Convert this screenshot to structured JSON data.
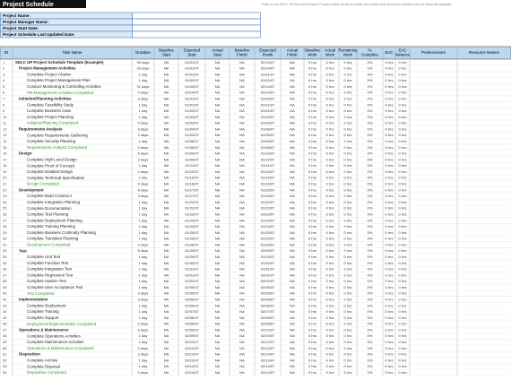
{
  "header": {
    "title": "Project Schedule",
    "note": "Refer to the SDLC UP Microsoft Project Phases Guide for the template information that should be updated prior to using the template"
  },
  "project_info": {
    "labels": [
      "Project Name:",
      "Project Manager Name:",
      "Project Start Date:",
      "Project Schedule Last Updated Date:"
    ]
  },
  "table": {
    "columns": [
      "ID",
      "Task Name",
      "Duration",
      "Baseline Start",
      "Expected Start",
      "Actual Start",
      "Baseline Finish",
      "Expected Finish",
      "Actual Finish",
      "Baseline Work",
      "Actual Work",
      "Remaining Work",
      "% Complete",
      "EAC",
      "EAC Variance",
      "Predecessors",
      "Resource Names"
    ],
    "project": [
      "1",
      "SDLC UP Project Schedule Template (Example)",
      "33 days",
      "NA",
      "01/01/07",
      "NA",
      "NA",
      "02/14/07",
      "NA",
      "0 hrs",
      "0 hrs",
      "0 hrs",
      "0%",
      "0 hrs",
      "0 hrs"
    ],
    "phases": [
      {
        "summary": [
          "2",
          "Project Management Activities",
          "33 days",
          "NA",
          "01/01/07",
          "NA",
          "NA",
          "02/14/07",
          "NA",
          "0 hrs",
          "0 hrs",
          "0 hrs",
          "0%",
          "0 hrs",
          "0 hrs"
        ],
        "tasks": [
          [
            "3",
            "Complete Project Charter",
            "1 day",
            "NA",
            "01/01/07",
            "NA",
            "NA",
            "01/01/07",
            "NA",
            "0 hrs",
            "0 hrs",
            "0 hrs",
            "0%",
            "0 hrs",
            "0 hrs"
          ],
          [
            "4",
            "Complete Project Management Plan",
            "1 day",
            "NA",
            "01/02/07",
            "NA",
            "NA",
            "01/02/07",
            "NA",
            "0 hrs",
            "0 hrs",
            "0 hrs",
            "0%",
            "0 hrs",
            "0 hrs"
          ],
          [
            "5",
            "Conduct Monitoring & Controlling Activities",
            "31 days",
            "NA",
            "01/03/07",
            "NA",
            "NA",
            "02/14/07",
            "NA",
            "0 hrs",
            "0 hrs",
            "0 hrs",
            "0%",
            "0 hrs",
            "0 hrs"
          ]
        ],
        "milestone": [
          "6",
          "PM Management Activities Completed",
          "0 days",
          "NA",
          "02/14/07",
          "NA",
          "NA",
          "02/14/07",
          "NA",
          "0 hrs",
          "0 hrs",
          "0 hrs",
          "0%",
          "0 hrs",
          "0 hrs"
        ]
      },
      {
        "summary": [
          "7",
          "Initiation/Planning Activities",
          "3 days",
          "NA",
          "01/01/07",
          "NA",
          "NA",
          "01/03/07",
          "NA",
          "0 hrs",
          "0 hrs",
          "0 hrs",
          "0%",
          "0 hrs",
          "0 hrs"
        ],
        "tasks": [
          [
            "8",
            "Complete Feasibility Study",
            "1 day",
            "NA",
            "01/01/07",
            "NA",
            "NA",
            "01/01/07",
            "NA",
            "0 hrs",
            "0 hrs",
            "0 hrs",
            "0%",
            "0 hrs",
            "0 hrs"
          ],
          [
            "9",
            "Complete Business Case",
            "1 day",
            "NA",
            "01/02/07",
            "NA",
            "NA",
            "01/02/07",
            "NA",
            "0 hrs",
            "0 hrs",
            "0 hrs",
            "0%",
            "0 hrs",
            "0 hrs"
          ],
          [
            "10",
            "Complete Project Planning",
            "1 day",
            "NA",
            "01/03/07",
            "NA",
            "NA",
            "01/03/07",
            "NA",
            "0 hrs",
            "0 hrs",
            "0 hrs",
            "0%",
            "0 hrs",
            "0 hrs"
          ]
        ],
        "milestone": [
          "11",
          "Initiation/Planning Completed",
          "0 days",
          "NA",
          "01/03/07",
          "NA",
          "NA",
          "01/03/07",
          "NA",
          "0 hrs",
          "0 hrs",
          "0 hrs",
          "0%",
          "0 hrs",
          "0 hrs"
        ]
      },
      {
        "summary": [
          "12",
          "Requirements Analysis",
          "3 days",
          "NA",
          "01/04/07",
          "NA",
          "NA",
          "01/08/07",
          "NA",
          "0 hrs",
          "0 hrs",
          "0 hrs",
          "0%",
          "0 hrs",
          "0 hrs"
        ],
        "tasks": [
          [
            "13",
            "Complete Requirements Gathering",
            "2 days",
            "NA",
            "01/04/07",
            "NA",
            "NA",
            "01/05/07",
            "NA",
            "0 hrs",
            "0 hrs",
            "0 hrs",
            "0%",
            "0 hrs",
            "0 hrs"
          ],
          [
            "14",
            "Complete Security Planning",
            "1 day",
            "NA",
            "01/08/07",
            "NA",
            "NA",
            "01/08/07",
            "NA",
            "0 hrs",
            "0 hrs",
            "0 hrs",
            "0%",
            "0 hrs",
            "0 hrs"
          ]
        ],
        "milestone": [
          "15",
          "Requirements Analysis Completed",
          "0 days",
          "NA",
          "01/08/07",
          "NA",
          "NA",
          "01/08/07",
          "NA",
          "0 hrs",
          "0 hrs",
          "0 hrs",
          "0%",
          "0 hrs",
          "0 hrs"
        ]
      },
      {
        "summary": [
          "16",
          "Design",
          "6 days",
          "NA",
          "01/09/07",
          "NA",
          "NA",
          "01/16/07",
          "NA",
          "0 hrs",
          "0 hrs",
          "0 hrs",
          "0%",
          "0 hrs",
          "0 hrs"
        ],
        "tasks": [
          [
            "17",
            "Complete High Level Design",
            "2 days",
            "NA",
            "01/09/07",
            "NA",
            "NA",
            "01/10/07",
            "NA",
            "0 hrs",
            "0 hrs",
            "0 hrs",
            "0%",
            "0 hrs",
            "0 hrs"
          ],
          [
            "18",
            "Complete Proof of Concept",
            "1 day",
            "NA",
            "01/11/07",
            "NA",
            "NA",
            "01/11/07",
            "NA",
            "0 hrs",
            "0 hrs",
            "0 hrs",
            "0%",
            "0 hrs",
            "0 hrs"
          ],
          [
            "19",
            "Complete Detailed Design",
            "2 days",
            "NA",
            "01/12/07",
            "NA",
            "NA",
            "01/15/07",
            "NA",
            "0 hrs",
            "0 hrs",
            "0 hrs",
            "0%",
            "0 hrs",
            "0 hrs"
          ],
          [
            "20",
            "Complete Technical Specification",
            "1 day",
            "NA",
            "01/16/07",
            "NA",
            "NA",
            "01/16/07",
            "NA",
            "0 hrs",
            "0 hrs",
            "0 hrs",
            "0%",
            "0 hrs",
            "0 hrs"
          ]
        ],
        "milestone": [
          "21",
          "Design Completed",
          "0 days",
          "NA",
          "01/16/07",
          "NA",
          "NA",
          "01/16/07",
          "NA",
          "0 hrs",
          "0 hrs",
          "0 hrs",
          "0%",
          "0 hrs",
          "0 hrs"
        ]
      },
      {
        "summary": [
          "22",
          "Development",
          "8 days",
          "NA",
          "01/17/07",
          "NA",
          "NA",
          "01/26/07",
          "NA",
          "0 hrs",
          "0 hrs",
          "0 hrs",
          "0%",
          "0 hrs",
          "0 hrs"
        ],
        "tasks": [
          [
            "23",
            "Complete Build Construct",
            "3 days",
            "NA",
            "01/17/07",
            "NA",
            "NA",
            "01/19/07",
            "NA",
            "0 hrs",
            "0 hrs",
            "0 hrs",
            "0%",
            "0 hrs",
            "0 hrs"
          ],
          [
            "24",
            "Complete Integration Planning",
            "1 day",
            "NA",
            "01/22/07",
            "NA",
            "NA",
            "01/22/07",
            "NA",
            "0 hrs",
            "0 hrs",
            "0 hrs",
            "0%",
            "0 hrs",
            "0 hrs"
          ],
          [
            "25",
            "Complete Documentation",
            "1 day",
            "NA",
            "01/22/07",
            "NA",
            "NA",
            "01/22/07",
            "NA",
            "0 hrs",
            "0 hrs",
            "0 hrs",
            "0%",
            "0 hrs",
            "0 hrs"
          ],
          [
            "26",
            "Complete Test Planning",
            "1 day",
            "NA",
            "01/23/07",
            "NA",
            "NA",
            "01/23/07",
            "NA",
            "0 hrs",
            "0 hrs",
            "0 hrs",
            "0%",
            "0 hrs",
            "0 hrs"
          ],
          [
            "27",
            "Complete Deployment Planning",
            "1 day",
            "NA",
            "01/24/07",
            "NA",
            "NA",
            "01/24/07",
            "NA",
            "0 hrs",
            "0 hrs",
            "0 hrs",
            "0%",
            "0 hrs",
            "0 hrs"
          ],
          [
            "28",
            "Complete Training Planning",
            "1 day",
            "NA",
            "01/24/07",
            "NA",
            "NA",
            "01/24/07",
            "NA",
            "0 hrs",
            "0 hrs",
            "0 hrs",
            "0%",
            "0 hrs",
            "0 hrs"
          ],
          [
            "29",
            "Complete Business Continuity Planning",
            "1 day",
            "NA",
            "01/25/07",
            "NA",
            "NA",
            "01/25/07",
            "NA",
            "0 hrs",
            "0 hrs",
            "0 hrs",
            "0%",
            "0 hrs",
            "0 hrs"
          ],
          [
            "30",
            "Complete Transition Planning",
            "1 day",
            "NA",
            "01/26/07",
            "NA",
            "NA",
            "01/26/07",
            "NA",
            "0 hrs",
            "0 hrs",
            "0 hrs",
            "0%",
            "0 hrs",
            "0 hrs"
          ]
        ],
        "milestone": [
          "31",
          "Development Completed",
          "0 days",
          "NA",
          "01/26/07",
          "NA",
          "NA",
          "01/26/07",
          "NA",
          "0 hrs",
          "0 hrs",
          "0 hrs",
          "0%",
          "0 hrs",
          "0 hrs"
        ]
      },
      {
        "summary": [
          "33",
          "Test",
          "6 days",
          "NA",
          "01/29/07",
          "NA",
          "NA",
          "02/05/07",
          "NA",
          "0 hrs",
          "0 hrs",
          "0 hrs",
          "0%",
          "0 hrs",
          "0 hrs"
        ],
        "tasks": [
          [
            "34",
            "Complete Unit Test",
            "1 day",
            "NA",
            "01/29/07",
            "NA",
            "NA",
            "01/29/07",
            "NA",
            "0 hrs",
            "0 hrs",
            "0 hrs",
            "0%",
            "0 hrs",
            "0 hrs"
          ],
          [
            "35",
            "Complete Function Test",
            "1 day",
            "NA",
            "01/30/07",
            "NA",
            "NA",
            "01/30/07",
            "NA",
            "0 hrs",
            "0 hrs",
            "0 hrs",
            "0%",
            "0 hrs",
            "0 hrs"
          ],
          [
            "36",
            "Complete Integration Test",
            "1 day",
            "NA",
            "01/31/07",
            "NA",
            "NA",
            "01/31/07",
            "NA",
            "0 hrs",
            "0 hrs",
            "0 hrs",
            "0%",
            "0 hrs",
            "0 hrs"
          ],
          [
            "37",
            "Complete Regression Test",
            "1 day",
            "NA",
            "02/01/07",
            "NA",
            "NA",
            "02/01/07",
            "NA",
            "0 hrs",
            "0 hrs",
            "0 hrs",
            "0%",
            "0 hrs",
            "0 hrs"
          ],
          [
            "38",
            "Complete System Test",
            "1 day",
            "NA",
            "02/02/07",
            "NA",
            "NA",
            "02/02/07",
            "NA",
            "0 hrs",
            "0 hrs",
            "0 hrs",
            "0%",
            "0 hrs",
            "0 hrs"
          ],
          [
            "39",
            "Complete User Acceptance Test",
            "1 day",
            "NA",
            "02/05/07",
            "NA",
            "NA",
            "02/05/07",
            "NA",
            "0 hrs",
            "0 hrs",
            "0 hrs",
            "0%",
            "0 hrs",
            "0 hrs"
          ]
        ],
        "milestone": [
          "40",
          "Test Completed",
          "0 days",
          "NA",
          "02/05/07",
          "NA",
          "NA",
          "02/05/07",
          "NA",
          "0 hrs",
          "0 hrs",
          "0 hrs",
          "0%",
          "0 hrs",
          "0 hrs"
        ]
      },
      {
        "summary": [
          "42",
          "Implementation",
          "3 days",
          "NA",
          "02/06/07",
          "NA",
          "NA",
          "02/08/07",
          "NA",
          "0 hrs",
          "0 hrs",
          "0 hrs",
          "0%",
          "0 hrs",
          "0 hrs"
        ],
        "tasks": [
          [
            "43",
            "Complete Deployment",
            "1 day",
            "NA",
            "02/06/07",
            "NA",
            "NA",
            "02/06/07",
            "NA",
            "0 hrs",
            "0 hrs",
            "0 hrs",
            "0%",
            "0 hrs",
            "0 hrs"
          ],
          [
            "44",
            "Complete Training",
            "1 day",
            "NA",
            "02/07/07",
            "NA",
            "NA",
            "02/07/07",
            "NA",
            "0 hrs",
            "0 hrs",
            "0 hrs",
            "0%",
            "0 hrs",
            "0 hrs"
          ],
          [
            "45",
            "Complete Support",
            "1 day",
            "NA",
            "02/08/07",
            "NA",
            "NA",
            "02/08/07",
            "NA",
            "0 hrs",
            "0 hrs",
            "0 hrs",
            "0%",
            "0 hrs",
            "0 hrs"
          ]
        ],
        "milestone": [
          "46",
          "Deployment/Implementation Completed",
          "0 days",
          "NA",
          "02/08/07",
          "NA",
          "NA",
          "02/08/07",
          "NA",
          "0 hrs",
          "0 hrs",
          "0 hrs",
          "0%",
          "0 hrs",
          "0 hrs"
        ]
      },
      {
        "summary": [
          "47",
          "Operations & Maintenance",
          "2 days",
          "NA",
          "02/09/07",
          "NA",
          "NA",
          "02/12/07",
          "NA",
          "0 hrs",
          "0 hrs",
          "0 hrs",
          "0%",
          "0 hrs",
          "0 hrs"
        ],
        "tasks": [
          [
            "48",
            "Complete Operations Activities",
            "1 day",
            "NA",
            "02/09/07",
            "NA",
            "NA",
            "02/09/07",
            "NA",
            "0 hrs",
            "0 hrs",
            "0 hrs",
            "0%",
            "0 hrs",
            "0 hrs"
          ],
          [
            "49",
            "Complete Maintenance Activities",
            "1 day",
            "NA",
            "02/12/07",
            "NA",
            "NA",
            "02/12/07",
            "NA",
            "0 hrs",
            "0 hrs",
            "0 hrs",
            "0%",
            "0 hrs",
            "0 hrs"
          ]
        ],
        "milestone": [
          "50",
          "Operations & Maintenance Completed",
          "0 days",
          "NA",
          "02/12/07",
          "NA",
          "NA",
          "02/12/07",
          "NA",
          "0 hrs",
          "0 hrs",
          "0 hrs",
          "0%",
          "0 hrs",
          "0 hrs"
        ]
      },
      {
        "summary": [
          "51",
          "Disposition",
          "2 days",
          "NA",
          "02/13/07",
          "NA",
          "NA",
          "02/14/07",
          "NA",
          "0 hrs",
          "0 hrs",
          "0 hrs",
          "0%",
          "0 hrs",
          "0 hrs"
        ],
        "tasks": [
          [
            "52",
            "Complete Archive",
            "1 day",
            "NA",
            "02/13/07",
            "NA",
            "NA",
            "02/13/07",
            "NA",
            "0 hrs",
            "0 hrs",
            "0 hrs",
            "0%",
            "0 hrs",
            "0 hrs"
          ],
          [
            "53",
            "Complete Disposal",
            "1 day",
            "NA",
            "02/14/07",
            "NA",
            "NA",
            "02/14/07",
            "NA",
            "0 hrs",
            "0 hrs",
            "0 hrs",
            "0%",
            "0 hrs",
            "0 hrs"
          ]
        ],
        "milestone": [
          "54",
          "Disposition Completed",
          "0 days",
          "NA",
          "02/14/07",
          "NA",
          "NA",
          "02/14/07",
          "NA",
          "0 hrs",
          "0 hrs",
          "0 hrs",
          "0%",
          "0 hrs",
          "0 hrs"
        ]
      }
    ]
  }
}
